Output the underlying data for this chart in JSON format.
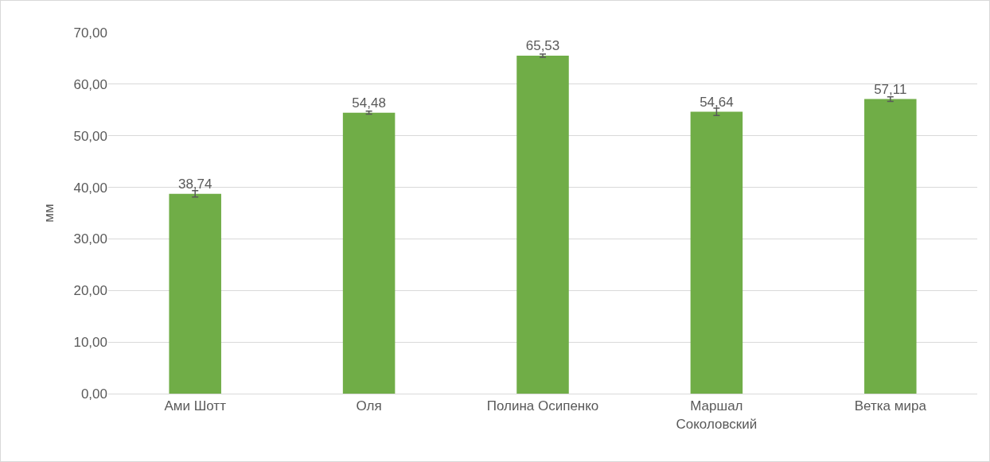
{
  "chart_data": {
    "type": "bar",
    "ylabel": "мм",
    "categories": [
      "Ами Шотт",
      "Оля",
      "Полина Осипенко",
      "Маршал Соколовский",
      "Ветка мира"
    ],
    "values": [
      38.74,
      54.48,
      65.53,
      54.64,
      57.11
    ],
    "value_labels": [
      "38,74",
      "54,48",
      "65,53",
      "54,64",
      "57,11"
    ],
    "errors": [
      0.6,
      0.3,
      0.3,
      0.7,
      0.45
    ],
    "color": "#70ad47",
    "ylim": [
      0,
      70
    ],
    "yticks": [
      {
        "value": 0,
        "label": "0,00"
      },
      {
        "value": 10,
        "label": "10,00"
      },
      {
        "value": 20,
        "label": "20,00"
      },
      {
        "value": 30,
        "label": "30,00"
      },
      {
        "value": 40,
        "label": "40,00"
      },
      {
        "value": 50,
        "label": "50,00"
      },
      {
        "value": 60,
        "label": "60,00"
      },
      {
        "value": 70,
        "label": "70,00"
      }
    ],
    "grid": "y",
    "legend": false
  }
}
